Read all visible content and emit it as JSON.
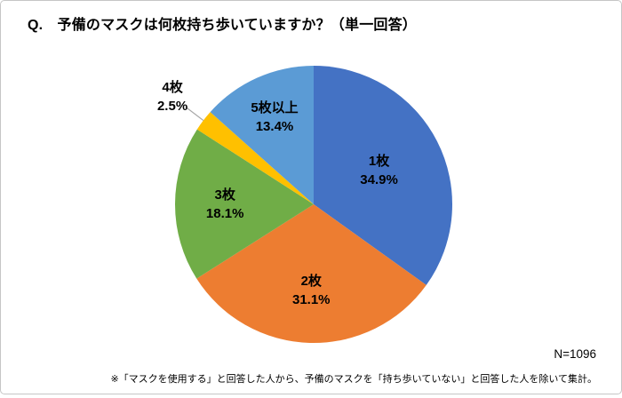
{
  "title": "Q.　予備のマスクは何枚持ち歩いていますか？（単一回答）",
  "sample_size_label": "N=1096",
  "footnote": "※「マスクを使用する」と回答した人から、予備のマスクを「持ち歩いていない」と回答した人を除いて集計。",
  "chart_data": {
    "type": "pie",
    "title": "予備のマスクは何枚持ち歩いていますか？（単一回答）",
    "categories": [
      "1枚",
      "2枚",
      "3枚",
      "4枚",
      "5枚以上"
    ],
    "values": [
      34.9,
      31.1,
      18.1,
      2.5,
      13.4
    ],
    "value_labels": [
      "34.9%",
      "31.1%",
      "18.1%",
      "2.5%",
      "13.4%"
    ],
    "colors": [
      "#4472C4",
      "#ED7D31",
      "#70AD47",
      "#FFC000",
      "#5B9BD5"
    ],
    "unit": "%",
    "n": 1096,
    "start_angle_deg": 0,
    "direction": "clockwise",
    "legend": "none",
    "label_placement": [
      "inside",
      "inside",
      "inside",
      "outside",
      "inside"
    ],
    "label_radius_fraction": [
      0.53,
      0.62,
      0.64,
      1.28,
      0.69
    ],
    "leader_line_color": "#a6a6a6",
    "label_text_color": "#000000"
  }
}
